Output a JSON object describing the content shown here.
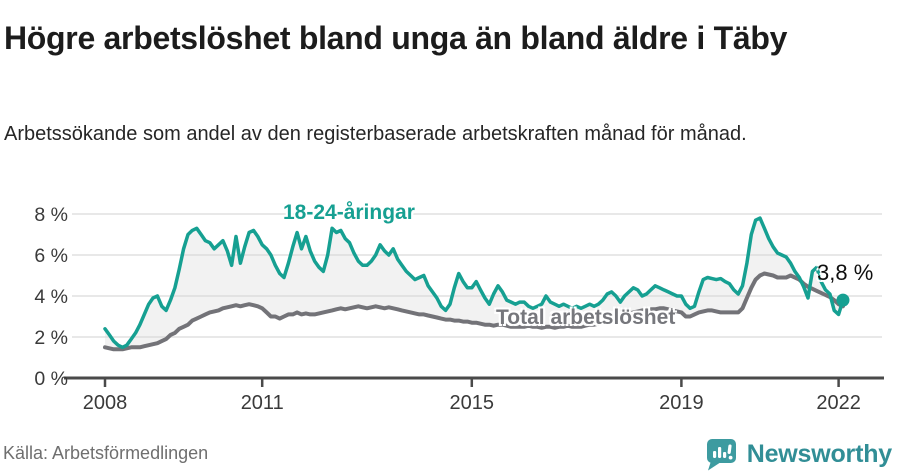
{
  "header": {
    "title": "Högre arbetslöshet bland unga än bland äldre i Täby",
    "subtitle": "Arbetssökande som andel av den registerbaserade arbetskraften månad för månad."
  },
  "chart_data": {
    "type": "line",
    "unit": "%",
    "x_start_year": 2008,
    "points_per_month": 1,
    "ylim": [
      0,
      8
    ],
    "yticks": {
      "values": [
        0,
        2,
        4,
        6,
        8
      ],
      "labels": [
        "0 %",
        "2 %",
        "4 %",
        "6 %",
        "8 %"
      ]
    },
    "xticks": {
      "values": [
        2008,
        2011,
        2015,
        2019,
        2022
      ],
      "labels": [
        "2008",
        "2011",
        "2015",
        "2019",
        "2022"
      ]
    },
    "grid": "horizontal",
    "legend_position": "inline-labels",
    "colors": {
      "grid": "#d9d9d9",
      "axis": "#4a4a4a",
      "tick_text": "#3a3a3a",
      "area_fill": "rgba(0,0,0,0.05)"
    },
    "series": [
      {
        "name": "18-24-åringar",
        "color": "#16a092",
        "values": [
          2.4,
          2.1,
          1.8,
          1.6,
          1.5,
          1.6,
          1.9,
          2.2,
          2.6,
          3.1,
          3.6,
          3.9,
          4.0,
          3.5,
          3.3,
          3.8,
          4.4,
          5.3,
          6.3,
          7.0,
          7.2,
          7.3,
          7.0,
          6.7,
          6.6,
          6.3,
          6.5,
          6.7,
          6.2,
          5.5,
          6.9,
          5.6,
          6.4,
          7.1,
          7.2,
          6.9,
          6.5,
          6.3,
          6.0,
          5.5,
          5.1,
          4.9,
          5.6,
          6.4,
          7.1,
          6.3,
          6.9,
          6.2,
          5.7,
          5.4,
          5.2,
          6.0,
          7.3,
          7.1,
          7.2,
          6.8,
          6.6,
          6.1,
          5.7,
          5.5,
          5.5,
          5.7,
          6.0,
          6.5,
          6.2,
          6.0,
          6.3,
          5.8,
          5.5,
          5.2,
          5.0,
          4.8,
          4.9,
          5.0,
          4.5,
          4.2,
          3.9,
          3.5,
          3.3,
          3.6,
          4.4,
          5.1,
          4.7,
          4.4,
          4.4,
          4.7,
          4.3,
          3.9,
          3.6,
          4.1,
          4.5,
          4.2,
          3.8,
          3.7,
          3.6,
          3.7,
          3.7,
          3.5,
          3.4,
          3.5,
          3.6,
          4.0,
          3.7,
          3.6,
          3.5,
          3.6,
          3.5,
          3.4,
          3.5,
          3.4,
          3.5,
          3.6,
          3.5,
          3.6,
          3.8,
          4.1,
          4.2,
          4.0,
          3.7,
          4.0,
          4.2,
          4.4,
          4.3,
          4.0,
          4.1,
          4.3,
          4.5,
          4.4,
          4.3,
          4.2,
          4.1,
          4.0,
          4.0,
          3.6,
          3.4,
          3.5,
          4.2,
          4.8,
          4.9,
          4.85,
          4.8,
          4.85,
          4.7,
          4.6,
          4.3,
          4.1,
          4.5,
          5.6,
          7.0,
          7.7,
          7.8,
          7.3,
          6.8,
          6.4,
          6.1,
          6.0,
          5.9,
          5.6,
          5.2,
          4.9,
          4.45,
          3.9,
          5.2,
          5.4,
          4.7,
          4.3,
          4.1,
          3.3,
          3.1,
          3.8
        ]
      },
      {
        "name": "Total arbetslöshet",
        "color": "#737378",
        "values": [
          1.5,
          1.45,
          1.4,
          1.4,
          1.4,
          1.45,
          1.5,
          1.5,
          1.5,
          1.55,
          1.6,
          1.65,
          1.7,
          1.8,
          1.9,
          2.1,
          2.2,
          2.4,
          2.5,
          2.6,
          2.8,
          2.9,
          3.0,
          3.1,
          3.2,
          3.25,
          3.3,
          3.4,
          3.45,
          3.5,
          3.55,
          3.5,
          3.55,
          3.6,
          3.55,
          3.5,
          3.4,
          3.2,
          3.0,
          3.0,
          2.9,
          3.0,
          3.1,
          3.1,
          3.2,
          3.1,
          3.15,
          3.1,
          3.1,
          3.15,
          3.2,
          3.25,
          3.3,
          3.35,
          3.4,
          3.35,
          3.4,
          3.45,
          3.5,
          3.45,
          3.4,
          3.45,
          3.5,
          3.45,
          3.4,
          3.45,
          3.4,
          3.35,
          3.3,
          3.25,
          3.2,
          3.15,
          3.1,
          3.1,
          3.05,
          3.0,
          2.95,
          2.9,
          2.85,
          2.85,
          2.8,
          2.8,
          2.75,
          2.75,
          2.7,
          2.7,
          2.65,
          2.6,
          2.6,
          2.55,
          2.6,
          2.6,
          2.55,
          2.5,
          2.5,
          2.5,
          2.5,
          2.55,
          2.5,
          2.5,
          2.45,
          2.5,
          2.5,
          2.45,
          2.5,
          2.5,
          2.55,
          2.5,
          2.5,
          2.5,
          2.55,
          2.6,
          2.6,
          2.65,
          2.7,
          2.8,
          2.9,
          3.0,
          3.05,
          3.1,
          3.15,
          3.2,
          3.25,
          3.3,
          3.3,
          3.35,
          3.35,
          3.4,
          3.4,
          3.35,
          3.3,
          3.25,
          3.2,
          3.0,
          3.0,
          3.1,
          3.2,
          3.25,
          3.3,
          3.3,
          3.25,
          3.2,
          3.2,
          3.2,
          3.2,
          3.2,
          3.4,
          3.9,
          4.4,
          4.8,
          5.0,
          5.1,
          5.05,
          5.0,
          4.9,
          4.9,
          4.9,
          5.0,
          4.9,
          4.8,
          4.6,
          4.45,
          4.35,
          4.25,
          4.15,
          4.05,
          3.95,
          3.8,
          3.6,
          3.5
        ]
      }
    ],
    "end_annotation": {
      "text": "3,8 %",
      "color": "#0f0f0f",
      "marker": "dot",
      "marker_color": "#16a092"
    }
  },
  "footer": {
    "source": "Källa: Arbetsförmedlingen",
    "logo_text": "Newsworthy",
    "logo_color": "#318e96",
    "logo_icon_color": "#3d9ba0"
  }
}
